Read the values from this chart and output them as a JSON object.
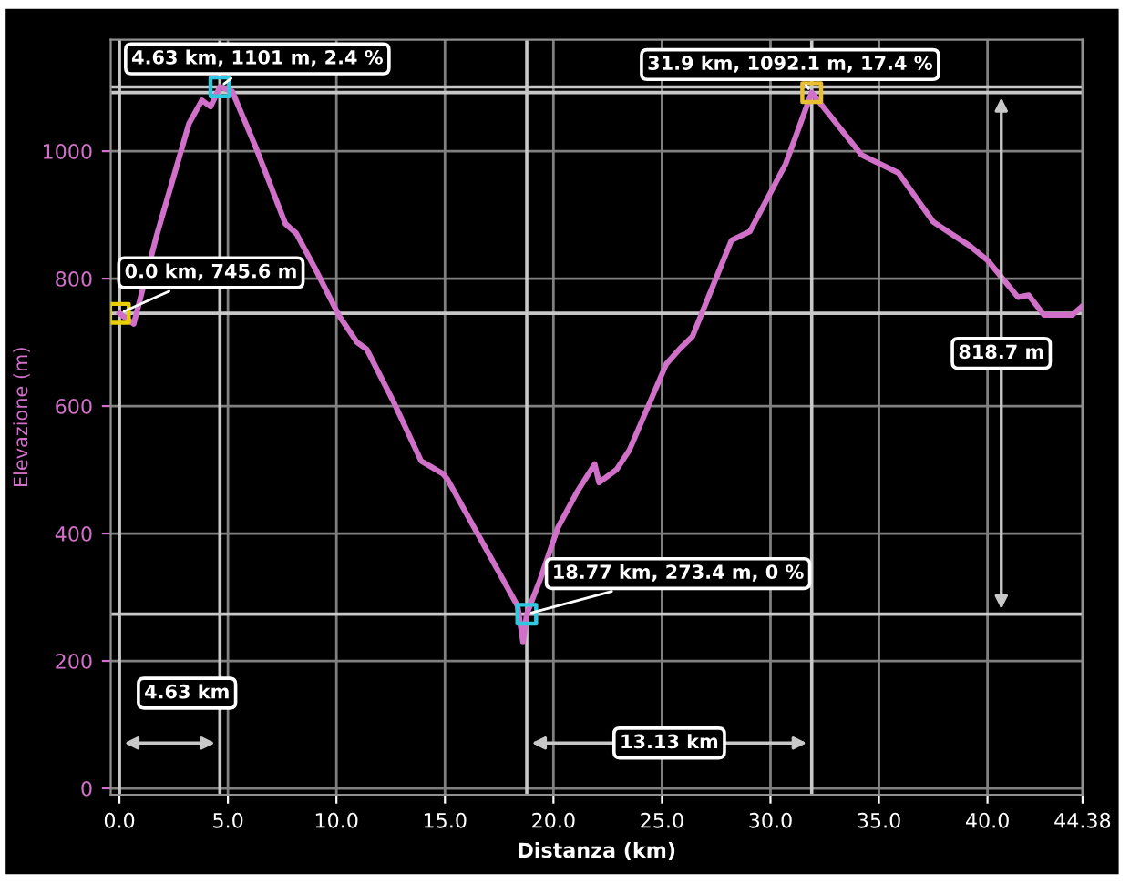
{
  "chart_data": {
    "type": "line",
    "xlabel": "Distanza (km)",
    "ylabel": "Elevazione (m)",
    "xlim": [
      -0.4,
      44.38
    ],
    "ylim": [
      -10,
      1175
    ],
    "xticks": [
      {
        "value": 0,
        "label": "0.0"
      },
      {
        "value": 5,
        "label": "5.0"
      },
      {
        "value": 10,
        "label": "10.0"
      },
      {
        "value": 15,
        "label": "15.0"
      },
      {
        "value": 20,
        "label": "20.0"
      },
      {
        "value": 25,
        "label": "25.0"
      },
      {
        "value": 30,
        "label": "30.0"
      },
      {
        "value": 35,
        "label": "35.0"
      },
      {
        "value": 40,
        "label": "40.0"
      },
      44.38
    ],
    "yticks": [
      0,
      200,
      400,
      600,
      800,
      1000
    ],
    "grid": true,
    "series": [
      {
        "color": "#d070c8",
        "marker": "none",
        "x": [
          0,
          0.66,
          1.7,
          2.55,
          3.2,
          3.8,
          4.2,
          4.63,
          5.2,
          6.25,
          7.65,
          8.15,
          9.0,
          10.1,
          10.95,
          11.4,
          12.6,
          13.9,
          14.9,
          15.1,
          18.35,
          18.6,
          18.77,
          19.4,
          20.2,
          21.1,
          21.9,
          22.1,
          22.9,
          23.5,
          25.2,
          25.8,
          26.4,
          28.2,
          29.05,
          30.7,
          31.9,
          34.2,
          35.9,
          37.5,
          39.2,
          40.0,
          41.4,
          41.9,
          42.6,
          43.9,
          44.38
        ],
        "values": [
          745.6,
          729,
          866,
          966,
          1043,
          1080,
          1070,
          1101,
          1094,
          1009,
          886,
          871,
          817,
          743,
          700,
          689,
          609,
          514,
          494,
          486,
          286,
          229,
          273.4,
          329,
          409,
          466,
          509,
          480,
          500,
          531,
          666,
          689,
          709,
          860,
          874,
          980,
          1092.1,
          994,
          966,
          889,
          851,
          829,
          771,
          774,
          743,
          743,
          757
        ]
      },
      {
        "type": "scatter",
        "marker": "square",
        "x": [
          0,
          4.63,
          18.77,
          31.9
        ],
        "values": [
          745.6,
          1101,
          273.4,
          1092.1
        ],
        "colors": [
          "#e8d000",
          "#30c8e0",
          "#30c8e0",
          "#e8c030"
        ]
      }
    ],
    "ref_lines": [
      {
        "axis": "x",
        "value": 0,
        "color": "#c8c8c8"
      },
      {
        "axis": "x",
        "value": 4.63,
        "color": "#c8c8c8"
      },
      {
        "axis": "x",
        "value": 18.77,
        "color": "#c8c8c8"
      },
      {
        "axis": "x",
        "value": 31.9,
        "color": "#c8c8c8"
      },
      {
        "axis": "y",
        "value": 745.6,
        "color": "#c8c8c8"
      },
      {
        "axis": "y",
        "value": 1101,
        "color": "#c8c8c8"
      },
      {
        "axis": "y",
        "value": 273.4,
        "color": "#c8c8c8"
      },
      {
        "axis": "y",
        "value": 1092.1,
        "color": "#c8c8c8"
      }
    ],
    "annotations": [
      {
        "text": "0.0 km, 745.6 m",
        "x": 0,
        "y": 745.6
      },
      {
        "text": "4.63 km, 1101 m, 2.4 %",
        "x": 4.63,
        "y": 1101
      },
      {
        "text": "18.77 km, 273.4 m, 0 %",
        "x": 18.77,
        "y": 273.4
      },
      {
        "text": "31.9 km, 1092.1 m, 17.4 %",
        "x": 31.9,
        "y": 1092.1
      },
      "4.63 km",
      "13.13 km",
      "818.7 m"
    ]
  }
}
